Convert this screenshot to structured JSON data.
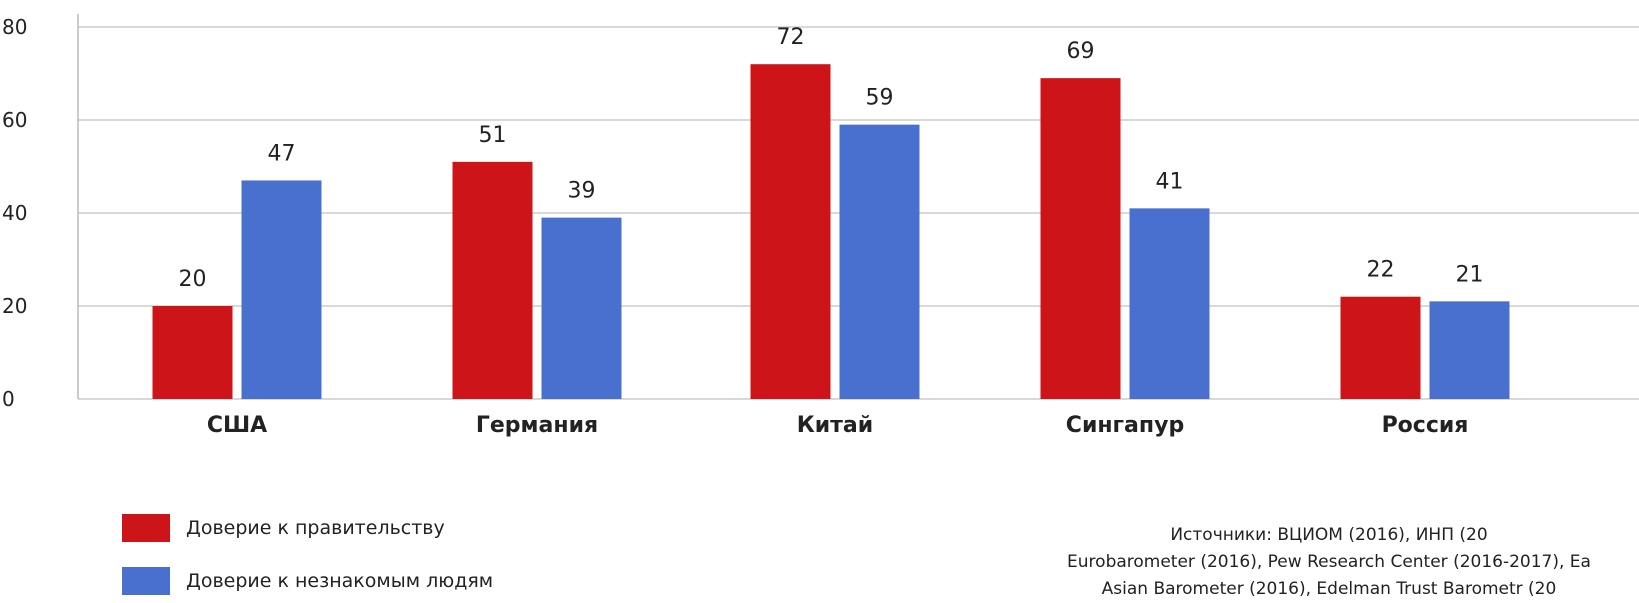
{
  "chart_data": {
    "type": "bar",
    "categories": [
      "США",
      "Германия",
      "Китай",
      "Сингапур",
      "Россия"
    ],
    "series": [
      {
        "name": "Доверие к правительству",
        "color": "#cc1419",
        "values": [
          20,
          51,
          72,
          69,
          22
        ]
      },
      {
        "name": "Доверие к незнакомым людям",
        "color": "#4a70cf",
        "values": [
          47,
          39,
          59,
          41,
          21
        ]
      }
    ],
    "ylim": [
      0,
      80
    ],
    "yticks": [
      "0",
      "20",
      "40",
      "60",
      "80"
    ],
    "grid": true,
    "legend": "bottom-left"
  },
  "sources": {
    "line1": "Источники: ВЦИОМ (2016), ИНП (20",
    "line2": "Eurobarometer (2016), Pew Research Center (2016-2017), Ea",
    "line3": "Asian Barometer (2016), Edelman Trust Barometr (20"
  }
}
